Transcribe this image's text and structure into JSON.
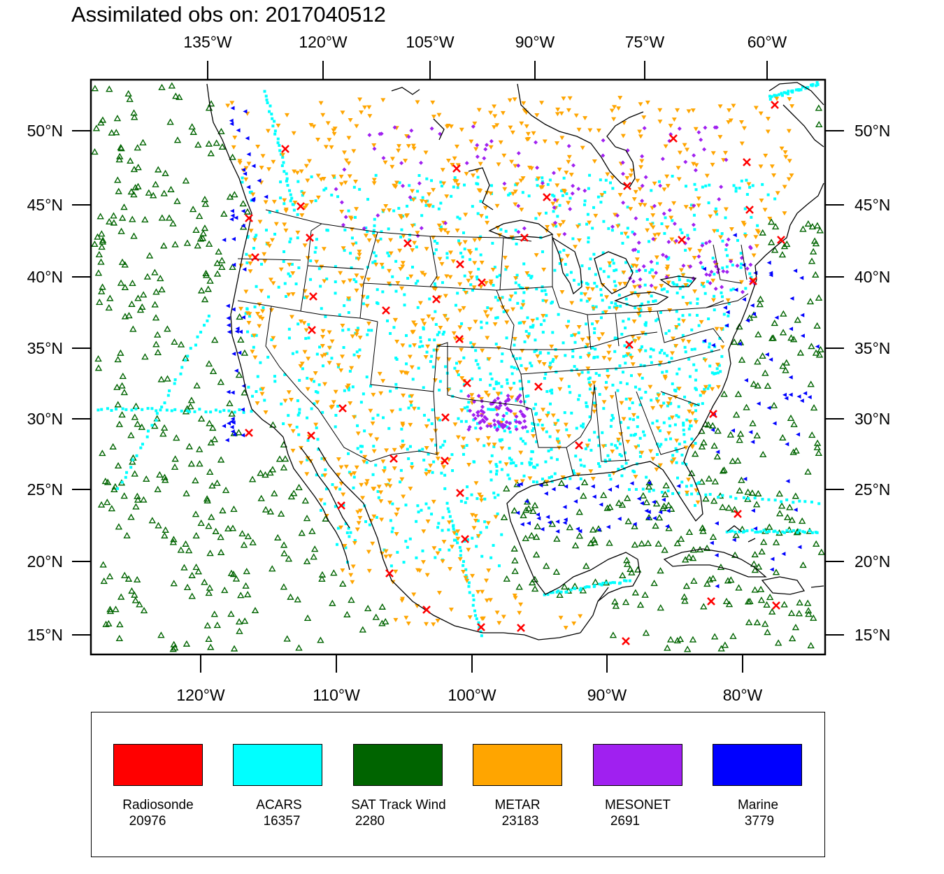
{
  "title": "Assimilated obs on: 2017040512",
  "axes": {
    "top_labels": [
      "135°W",
      "120°W",
      "105°W",
      "90°W",
      "75°W",
      "60°W"
    ],
    "bottom_labels": [
      "120°W",
      "110°W",
      "100°W",
      "90°W",
      "80°W"
    ],
    "left_labels": [
      "50°N",
      "45°N",
      "40°N",
      "35°N",
      "30°N",
      "25°N",
      "20°N",
      "15°N"
    ],
    "right_labels": [
      "50°N",
      "45°N",
      "40°N",
      "35°N",
      "30°N",
      "25°N",
      "20°N",
      "15°N"
    ]
  },
  "legend": [
    {
      "label": "Radiosonde",
      "count": "20976",
      "color": "#ff0000"
    },
    {
      "label": "ACARS",
      "count": "16357",
      "color": "#00ffff"
    },
    {
      "label": "SAT Track Wind",
      "count": "2280",
      "color": "#006400"
    },
    {
      "label": "METAR",
      "count": "23183",
      "color": "#ffa500"
    },
    {
      "label": "MESONET",
      "count": "2691",
      "color": "#a020f0"
    },
    {
      "label": "Marine",
      "count": "3779",
      "color": "#0000ff"
    }
  ],
  "colors": {
    "frame": "#000000",
    "coastline": "#000000"
  }
}
